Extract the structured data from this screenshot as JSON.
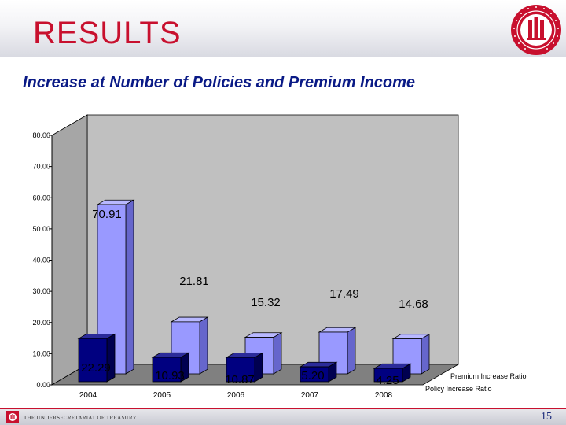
{
  "slide": {
    "title": "RESULTS",
    "subtitle": "Increase at Number of Policies and Premium Income",
    "footer_text": "THE UNDERSECRETARIAT OF TREASURY",
    "page_number": "15"
  },
  "colors": {
    "title_red": "#c8102e",
    "subtitle_blue": "#0a1a86",
    "premium_fill": "#9999ff",
    "policy_fill": "#000080",
    "wall": "#c0c0c0",
    "floor": "#808080"
  },
  "chart_data": {
    "type": "bar",
    "categories": [
      "2004",
      "2005",
      "2006",
      "2007",
      "2008"
    ],
    "series": [
      {
        "name": "Premium Increase Ratio",
        "color": "#9999ff",
        "values": [
          70.91,
          21.81,
          15.32,
          17.49,
          14.68
        ]
      },
      {
        "name": "Policy Increase Ratio",
        "color": "#000080",
        "values": [
          22.29,
          10.93,
          10.87,
          5.2,
          4.25
        ]
      }
    ],
    "ylim": [
      0,
      80
    ],
    "yticks": [
      "0.00",
      "10.00",
      "20.00",
      "30.00",
      "40.00",
      "50.00",
      "60.00",
      "70.00",
      "80.00"
    ],
    "premium_labels": [
      "70.91",
      "21.81",
      "15.32",
      "17.49",
      "14.68"
    ],
    "policy_labels": [
      "22.29",
      "10.93",
      "10.87",
      "5.20",
      "4.25"
    ],
    "legend_position": "bottom-right",
    "grid": false,
    "style": "3d-clustered"
  }
}
